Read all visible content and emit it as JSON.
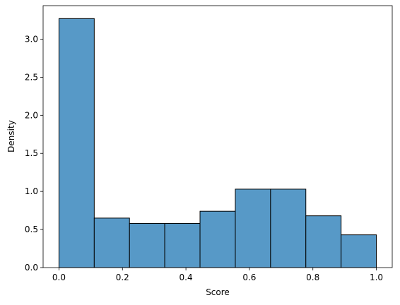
{
  "chart_data": {
    "type": "histogram",
    "xlabel": "Score",
    "ylabel": "Density",
    "bins": [
      0,
      0.1111,
      0.2222,
      0.3333,
      0.4444,
      0.5556,
      0.6667,
      0.7778,
      0.8889,
      1
    ],
    "values": [
      3.27,
      0.65,
      0.58,
      0.58,
      0.74,
      1.03,
      1.03,
      0.68,
      0.43
    ],
    "color": "#5799c7",
    "edgecolor": "#000000",
    "xlim": [
      -0.05,
      1.05
    ],
    "xticks": [
      {
        "value": 0,
        "label": "0.0"
      },
      0.2,
      0.4,
      0.6,
      0.8,
      {
        "value": 1,
        "label": "1.0"
      }
    ],
    "ylim": [
      0,
      3.44
    ],
    "yticks": [
      {
        "value": 0,
        "label": "0.0"
      },
      0.5,
      {
        "value": 1,
        "label": "1.0"
      },
      1.5,
      {
        "value": 2,
        "label": "2.0"
      },
      2.5,
      {
        "value": 3,
        "label": "3.0"
      }
    ],
    "grid": false
  }
}
